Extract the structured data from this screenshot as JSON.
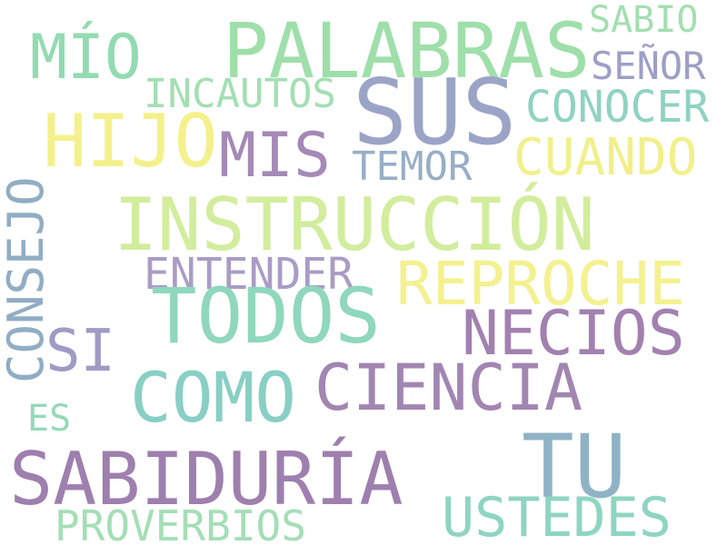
{
  "words": [
    {
      "key": "sabio",
      "text": "SABIO",
      "color": "#a3dfb0"
    },
    {
      "key": "mio",
      "text": "MÍO",
      "color": "#93dbb2"
    },
    {
      "key": "palabras",
      "text": "PALABRAS",
      "color": "#9fdfaa"
    },
    {
      "key": "senor",
      "text": "SEÑOR",
      "color": "#9d9fc6"
    },
    {
      "key": "incautos",
      "text": "INCAUTOS",
      "color": "#a3dfb2"
    },
    {
      "key": "sus",
      "text": "SUS",
      "color": "#9ba4c6"
    },
    {
      "key": "conocer",
      "text": "CONOCER",
      "color": "#8fd3c0"
    },
    {
      "key": "hijo",
      "text": "HIJO",
      "color": "#f4f18c"
    },
    {
      "key": "mis",
      "text": "MIS",
      "color": "#a589b6"
    },
    {
      "key": "cuando",
      "text": "CUANDO",
      "color": "#f2f08b"
    },
    {
      "key": "temor",
      "text": "TEMOR",
      "color": "#98aec6"
    },
    {
      "key": "instruccion",
      "text": "INSTRUCCIÓN",
      "color": "#d2ed9d"
    },
    {
      "key": "entender",
      "text": "ENTENDER",
      "color": "#a99dc6"
    },
    {
      "key": "reproche",
      "text": "REPROCHE",
      "color": "#f4f190"
    },
    {
      "key": "todos",
      "text": "TODOS",
      "color": "#8fd7bd"
    },
    {
      "key": "necios",
      "text": "NECIOS",
      "color": "#a281b0"
    },
    {
      "key": "si",
      "text": "SI",
      "color": "#9f9bc4"
    },
    {
      "key": "consejo",
      "text": "CONSEJO",
      "color": "#91adc4"
    },
    {
      "key": "ciencia",
      "text": "CIENCIA",
      "color": "#a286b2"
    },
    {
      "key": "como",
      "text": "COMO",
      "color": "#88cfc4"
    },
    {
      "key": "es",
      "text": "ES",
      "color": "#95d9b9"
    },
    {
      "key": "tu",
      "text": "TU",
      "color": "#8fb3c5"
    },
    {
      "key": "sabiduria",
      "text": "SABIDURÍA",
      "color": "#9e7fae"
    },
    {
      "key": "ustedes",
      "text": "USTEDES",
      "color": "#8ed5c2"
    },
    {
      "key": "proverbios",
      "text": "PROVERBIOS",
      "color": "#a4deb6"
    }
  ]
}
